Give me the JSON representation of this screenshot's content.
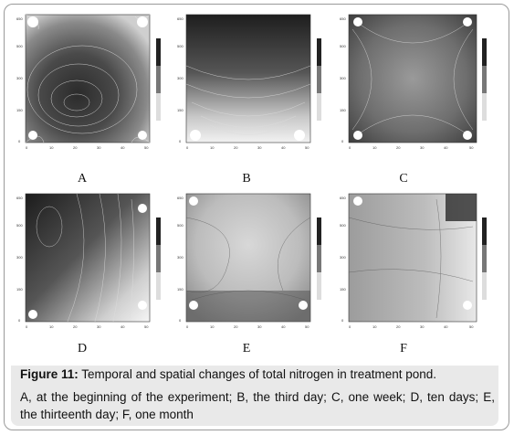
{
  "panels": [
    {
      "id": "A",
      "label": "A"
    },
    {
      "id": "B",
      "label": "B"
    },
    {
      "id": "C",
      "label": "C"
    },
    {
      "id": "D",
      "label": "D"
    },
    {
      "id": "E",
      "label": "E"
    },
    {
      "id": "F",
      "label": "F"
    }
  ],
  "caption": {
    "figure_label": "Figure 11:",
    "title": "Temporal and spatial changes of total nitrogen in treatment pond.",
    "body": "A, at the beginning of the experiment; B, the third day; C, one week; D, ten days; E, the thirteenth day; F, one month"
  }
}
